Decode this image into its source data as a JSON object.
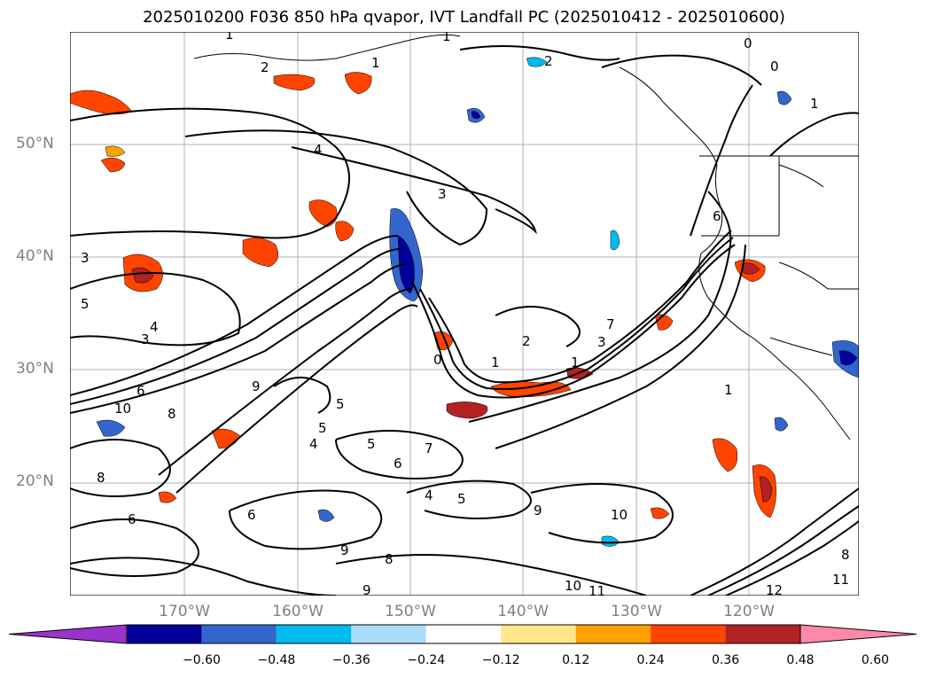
{
  "title": "2025010200 F036 850 hPa qvapor, IVT Landfall PC (2025010412 - 2025010600)",
  "lat_labels": [
    "50°N",
    "40°N",
    "30°N",
    "20°N"
  ],
  "lon_labels": [
    "170°W",
    "160°W",
    "150°W",
    "140°W",
    "130°W",
    "120°W"
  ],
  "colorbar": {
    "ticks": [
      "−0.60",
      "−0.48",
      "−0.36",
      "−0.24",
      "−0.12",
      "0.12",
      "0.24",
      "0.36",
      "0.48",
      "0.60"
    ],
    "colors": [
      "#9933cc",
      "#000099",
      "#3366cc",
      "#00bbee",
      "#aaddf8",
      "#ffffff",
      "#ffe88a",
      "#ffa000",
      "#ff4400",
      "#b22222",
      "#ff88aa"
    ]
  },
  "contour_labels": [
    "1",
    "1",
    "1",
    "2",
    "2",
    "0",
    "0",
    "1",
    "4",
    "3",
    "3",
    "5",
    "4",
    "3",
    "2",
    "1",
    "1",
    "3",
    "6",
    "0",
    "6",
    "8",
    "10",
    "9",
    "5",
    "4",
    "5",
    "7",
    "6",
    "8",
    "4",
    "5",
    "6",
    "9",
    "8",
    "9",
    "10",
    "11",
    "12",
    "11",
    "8",
    "1",
    "9",
    "10",
    "5",
    "6",
    "7"
  ]
}
